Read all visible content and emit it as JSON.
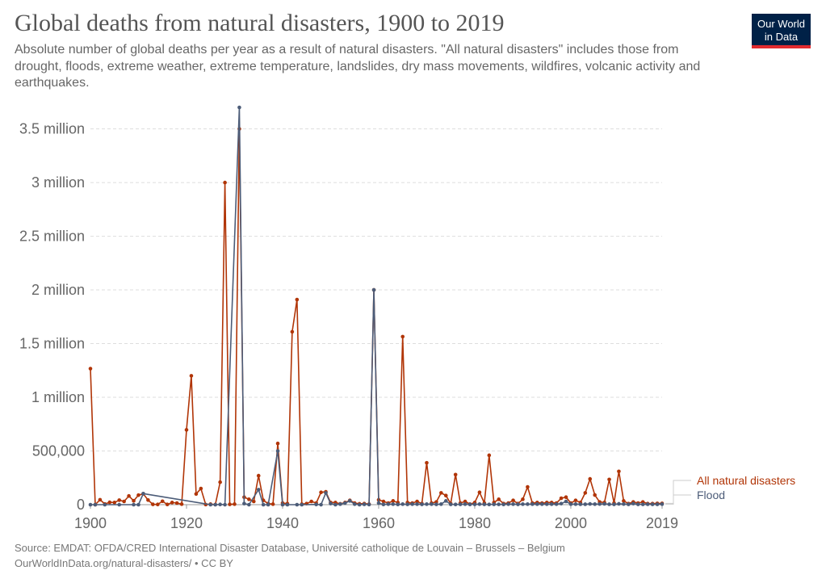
{
  "header": {
    "title": "Global deaths from natural disasters, 1900 to 2019",
    "subtitle": "Absolute number of global deaths per year as a result of natural disasters. \"All natural disasters\" includes those from drought, floods, extreme weather, extreme temperature, landslides, dry mass movements, wildfires, volcanic activity and earthquakes.",
    "logo_line1": "Our World",
    "logo_line2": "in Data"
  },
  "footer": {
    "source": "Source: EMDAT: OFDA/CRED International Disaster Database, Université catholique de Louvain – Brussels – Belgium",
    "url": "OurWorldInData.org/natural-disasters/ • CC BY"
  },
  "colors": {
    "all_natural_disasters": "#b13507",
    "flood": "#4c5c78",
    "grid": "#dddddd",
    "axis_text": "#666666"
  },
  "chart_data": {
    "type": "line",
    "title": "Global deaths from natural disasters, 1900 to 2019",
    "xlim": [
      1900,
      2019
    ],
    "ylim": [
      0,
      3700000
    ],
    "x_ticks": [
      {
        "value": 1900,
        "label": "1900"
      },
      {
        "value": 1920,
        "label": "1920"
      },
      {
        "value": 1940,
        "label": "1940"
      },
      {
        "value": 1960,
        "label": "1960"
      },
      {
        "value": 1980,
        "label": "1980"
      },
      {
        "value": 2000,
        "label": "2000"
      },
      {
        "value": 2019,
        "label": "2019"
      }
    ],
    "y_ticks": [
      {
        "value": 0,
        "label": "0"
      },
      {
        "value": 500000,
        "label": "500,000"
      },
      {
        "value": 1000000,
        "label": "1 million"
      },
      {
        "value": 1500000,
        "label": "1.5 million"
      },
      {
        "value": 2000000,
        "label": "2 million"
      },
      {
        "value": 2500000,
        "label": "2.5 million"
      },
      {
        "value": 3000000,
        "label": "3 million"
      },
      {
        "value": 3500000,
        "label": "3.5 million"
      }
    ],
    "grid": true,
    "legend": "right",
    "series": [
      {
        "name": "All natural disasters",
        "color": "#b13507",
        "points": [
          [
            1900,
            1267000
          ],
          [
            1901,
            200
          ],
          [
            1902,
            46000
          ],
          [
            1903,
            6500
          ],
          [
            1904,
            22000
          ],
          [
            1905,
            20000
          ],
          [
            1906,
            42000
          ],
          [
            1907,
            30000
          ],
          [
            1908,
            81000
          ],
          [
            1909,
            36000
          ],
          [
            1910,
            89000
          ],
          [
            1911,
            101000
          ],
          [
            1912,
            43000
          ],
          [
            1913,
            3000
          ],
          [
            1914,
            2000
          ],
          [
            1915,
            32000
          ],
          [
            1916,
            2000
          ],
          [
            1917,
            20000
          ],
          [
            1918,
            15000
          ],
          [
            1919,
            5000
          ],
          [
            1920,
            697000
          ],
          [
            1921,
            1200000
          ],
          [
            1922,
            100000
          ],
          [
            1923,
            150000
          ],
          [
            1924,
            1000
          ],
          [
            1925,
            5000
          ],
          [
            1926,
            1000
          ],
          [
            1927,
            210000
          ],
          [
            1928,
            3000000
          ],
          [
            1929,
            3000
          ],
          [
            1930,
            5000
          ],
          [
            1931,
            3500000
          ],
          [
            1932,
            70000
          ],
          [
            1933,
            50000
          ],
          [
            1934,
            30000
          ],
          [
            1935,
            270000
          ],
          [
            1936,
            40000
          ],
          [
            1937,
            10000
          ],
          [
            1938,
            5000
          ],
          [
            1939,
            570000
          ],
          [
            1940,
            15000
          ],
          [
            1941,
            10000
          ],
          [
            1942,
            1610000
          ],
          [
            1943,
            1910000
          ],
          [
            1944,
            5000
          ],
          [
            1945,
            10000
          ],
          [
            1946,
            30000
          ],
          [
            1947,
            15000
          ],
          [
            1948,
            115000
          ],
          [
            1949,
            120000
          ],
          [
            1950,
            20000
          ],
          [
            1951,
            20000
          ],
          [
            1952,
            8000
          ],
          [
            1953,
            20000
          ],
          [
            1954,
            40000
          ],
          [
            1955,
            15000
          ],
          [
            1956,
            8000
          ],
          [
            1957,
            10000
          ],
          [
            1958,
            5000
          ],
          [
            1959,
            2000000
          ],
          [
            1960,
            45000
          ],
          [
            1961,
            30000
          ],
          [
            1962,
            15000
          ],
          [
            1963,
            35000
          ],
          [
            1964,
            20000
          ],
          [
            1965,
            1565000
          ],
          [
            1966,
            20000
          ],
          [
            1967,
            15000
          ],
          [
            1968,
            30000
          ],
          [
            1969,
            10000
          ],
          [
            1970,
            390000
          ],
          [
            1971,
            15000
          ],
          [
            1972,
            25000
          ],
          [
            1973,
            110000
          ],
          [
            1974,
            85000
          ],
          [
            1975,
            10000
          ],
          [
            1976,
            280000
          ],
          [
            1977,
            15000
          ],
          [
            1978,
            30000
          ],
          [
            1979,
            5000
          ],
          [
            1980,
            20000
          ],
          [
            1981,
            115000
          ],
          [
            1982,
            15000
          ],
          [
            1983,
            460000
          ],
          [
            1984,
            20000
          ],
          [
            1985,
            50000
          ],
          [
            1986,
            10000
          ],
          [
            1987,
            15000
          ],
          [
            1988,
            40000
          ],
          [
            1989,
            10000
          ],
          [
            1990,
            50000
          ],
          [
            1991,
            165000
          ],
          [
            1992,
            15000
          ],
          [
            1993,
            20000
          ],
          [
            1994,
            15000
          ],
          [
            1995,
            20000
          ],
          [
            1996,
            20000
          ],
          [
            1997,
            15000
          ],
          [
            1998,
            60000
          ],
          [
            1999,
            70000
          ],
          [
            2000,
            15000
          ],
          [
            2001,
            40000
          ],
          [
            2002,
            20000
          ],
          [
            2003,
            110000
          ],
          [
            2004,
            240000
          ],
          [
            2005,
            90000
          ],
          [
            2006,
            25000
          ],
          [
            2007,
            20000
          ],
          [
            2008,
            235000
          ],
          [
            2009,
            15000
          ],
          [
            2010,
            310000
          ],
          [
            2011,
            35000
          ],
          [
            2012,
            10000
          ],
          [
            2013,
            25000
          ],
          [
            2014,
            15000
          ],
          [
            2015,
            25000
          ],
          [
            2016,
            10000
          ],
          [
            2017,
            10000
          ],
          [
            2018,
            12000
          ],
          [
            2019,
            12000
          ]
        ]
      },
      {
        "name": "Flood",
        "color": "#4c5c78",
        "points": [
          [
            1900,
            0
          ],
          [
            1901,
            0
          ],
          [
            1903,
            0
          ],
          [
            1906,
            0
          ],
          [
            1909,
            0
          ],
          [
            1910,
            0
          ],
          [
            1911,
            103000
          ],
          [
            1925,
            0
          ],
          [
            1926,
            0
          ],
          [
            1927,
            2000
          ],
          [
            1928,
            0
          ],
          [
            1931,
            3700000
          ],
          [
            1932,
            10000
          ],
          [
            1933,
            0
          ],
          [
            1935,
            140000
          ],
          [
            1936,
            0
          ],
          [
            1937,
            0
          ],
          [
            1939,
            500000
          ],
          [
            1940,
            0
          ],
          [
            1941,
            0
          ],
          [
            1943,
            0
          ],
          [
            1944,
            0
          ],
          [
            1947,
            2000
          ],
          [
            1948,
            0
          ],
          [
            1949,
            110000
          ],
          [
            1950,
            10000
          ],
          [
            1951,
            0
          ],
          [
            1952,
            5000
          ],
          [
            1953,
            15000
          ],
          [
            1954,
            35000
          ],
          [
            1955,
            5000
          ],
          [
            1956,
            0
          ],
          [
            1957,
            3000
          ],
          [
            1958,
            1000
          ],
          [
            1959,
            2000000
          ],
          [
            1960,
            15000
          ],
          [
            1961,
            2000
          ],
          [
            1962,
            5000
          ],
          [
            1963,
            5000
          ],
          [
            1964,
            2000
          ],
          [
            1965,
            5000
          ],
          [
            1966,
            3000
          ],
          [
            1967,
            5000
          ],
          [
            1968,
            5000
          ],
          [
            1969,
            3000
          ],
          [
            1970,
            5000
          ],
          [
            1971,
            5000
          ],
          [
            1972,
            3000
          ],
          [
            1973,
            5000
          ],
          [
            1974,
            35000
          ],
          [
            1975,
            3000
          ],
          [
            1976,
            2000
          ],
          [
            1977,
            3000
          ],
          [
            1978,
            5000
          ],
          [
            1979,
            2000
          ],
          [
            1980,
            3000
          ],
          [
            1981,
            5000
          ],
          [
            1982,
            3000
          ],
          [
            1983,
            2000
          ],
          [
            1984,
            3000
          ],
          [
            1985,
            3000
          ],
          [
            1986,
            2000
          ],
          [
            1987,
            5000
          ],
          [
            1988,
            5000
          ],
          [
            1989,
            3000
          ],
          [
            1990,
            5000
          ],
          [
            1991,
            5000
          ],
          [
            1992,
            5000
          ],
          [
            1993,
            5000
          ],
          [
            1994,
            5000
          ],
          [
            1995,
            5000
          ],
          [
            1996,
            5000
          ],
          [
            1997,
            5000
          ],
          [
            1998,
            10000
          ],
          [
            1999,
            30000
          ],
          [
            2000,
            5000
          ],
          [
            2001,
            5000
          ],
          [
            2002,
            4000
          ],
          [
            2003,
            4000
          ],
          [
            2004,
            7000
          ],
          [
            2005,
            5000
          ],
          [
            2006,
            6000
          ],
          [
            2007,
            8000
          ],
          [
            2008,
            4000
          ],
          [
            2009,
            3000
          ],
          [
            2010,
            8000
          ],
          [
            2011,
            6000
          ],
          [
            2012,
            3000
          ],
          [
            2013,
            10000
          ],
          [
            2014,
            3000
          ],
          [
            2015,
            3000
          ],
          [
            2016,
            4000
          ],
          [
            2017,
            3000
          ],
          [
            2018,
            3000
          ],
          [
            2019,
            5000
          ]
        ]
      }
    ]
  }
}
